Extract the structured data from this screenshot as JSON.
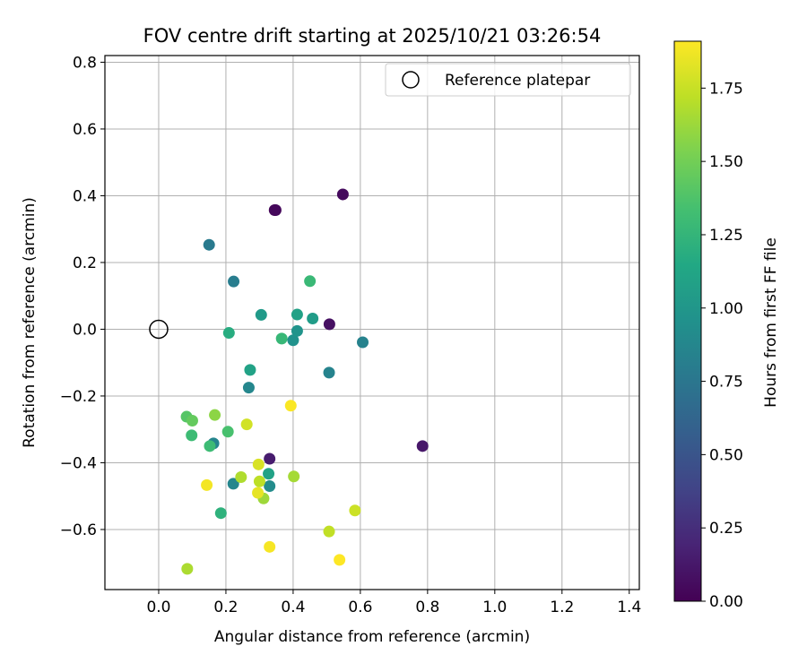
{
  "chart_data": {
    "type": "scatter",
    "title": "FOV centre drift starting at 2025/10/21 03:26:54",
    "xlabel": "Angular distance from reference (arcmin)",
    "ylabel": "Rotation from reference (arcmin)",
    "xlim": [
      -0.16,
      1.43
    ],
    "ylim": [
      -0.78,
      0.82
    ],
    "xticks": [
      0.0,
      0.2,
      0.4,
      0.6,
      0.8,
      1.0,
      1.2,
      1.4
    ],
    "xtick_labels": [
      "0.0",
      "0.2",
      "0.4",
      "0.6",
      "0.8",
      "1.0",
      "1.2",
      "1.4"
    ],
    "yticks": [
      -0.6,
      -0.4,
      -0.2,
      0.0,
      0.2,
      0.4,
      0.6,
      0.8
    ],
    "ytick_labels": [
      "−0.6",
      "−0.4",
      "−0.2",
      "0.0",
      "0.2",
      "0.4",
      "0.6",
      "0.8"
    ],
    "grid": true,
    "legend": {
      "position": "top-right",
      "entries": [
        "Reference platepar"
      ]
    },
    "reference_point": {
      "x": 0.0,
      "y": 0.0
    },
    "colorbar": {
      "label": "Hours from first FF file",
      "range": [
        0.0,
        1.91
      ],
      "ticks": [
        0.0,
        0.25,
        0.5,
        0.75,
        1.0,
        1.25,
        1.5,
        1.75
      ],
      "tick_labels": [
        "0.00",
        "0.25",
        "0.50",
        "0.75",
        "1.00",
        "1.25",
        "1.50",
        "1.75"
      ],
      "colormap": "viridis"
    },
    "points": [
      {
        "x": 0.345,
        "y": 0.357,
        "h": 0.02
      },
      {
        "x": 0.348,
        "y": 0.357,
        "h": 0.04
      },
      {
        "x": 0.548,
        "y": 0.404,
        "h": 0.05
      },
      {
        "x": 0.508,
        "y": 0.015,
        "h": 0.08
      },
      {
        "x": 0.785,
        "y": -0.35,
        "h": 0.12
      },
      {
        "x": 0.33,
        "y": -0.388,
        "h": 0.15
      },
      {
        "x": 0.15,
        "y": 0.253,
        "h": 0.78
      },
      {
        "x": 0.223,
        "y": 0.143,
        "h": 0.8
      },
      {
        "x": 0.607,
        "y": -0.039,
        "h": 0.84
      },
      {
        "x": 0.507,
        "y": -0.13,
        "h": 0.85
      },
      {
        "x": 0.268,
        "y": -0.175,
        "h": 0.88
      },
      {
        "x": 0.163,
        "y": -0.342,
        "h": 0.86
      },
      {
        "x": 0.222,
        "y": -0.463,
        "h": 0.87
      },
      {
        "x": 0.33,
        "y": -0.47,
        "h": 0.92
      },
      {
        "x": 0.4,
        "y": -0.033,
        "h": 0.96
      },
      {
        "x": 0.412,
        "y": -0.005,
        "h": 0.98
      },
      {
        "x": 0.305,
        "y": 0.043,
        "h": 1.03
      },
      {
        "x": 0.458,
        "y": 0.032,
        "h": 1.05
      },
      {
        "x": 0.412,
        "y": 0.044,
        "h": 1.09
      },
      {
        "x": 0.272,
        "y": -0.122,
        "h": 1.1
      },
      {
        "x": 0.327,
        "y": -0.433,
        "h": 1.1
      },
      {
        "x": 0.209,
        "y": -0.011,
        "h": 1.18
      },
      {
        "x": 0.366,
        "y": -0.028,
        "h": 1.27
      },
      {
        "x": 0.45,
        "y": 0.144,
        "h": 1.28
      },
      {
        "x": 0.185,
        "y": -0.551,
        "h": 1.22
      },
      {
        "x": 0.098,
        "y": -0.318,
        "h": 1.3
      },
      {
        "x": 0.152,
        "y": -0.35,
        "h": 1.3
      },
      {
        "x": 0.206,
        "y": -0.307,
        "h": 1.35
      },
      {
        "x": 0.083,
        "y": -0.262,
        "h": 1.4
      },
      {
        "x": 0.1,
        "y": -0.274,
        "h": 1.45
      },
      {
        "x": 0.167,
        "y": -0.257,
        "h": 1.58
      },
      {
        "x": 0.312,
        "y": -0.507,
        "h": 1.63
      },
      {
        "x": 0.402,
        "y": -0.441,
        "h": 1.65
      },
      {
        "x": 0.245,
        "y": -0.443,
        "h": 1.68
      },
      {
        "x": 0.3,
        "y": -0.456,
        "h": 1.72
      },
      {
        "x": 0.085,
        "y": -0.718,
        "h": 1.67
      },
      {
        "x": 0.507,
        "y": -0.606,
        "h": 1.73
      },
      {
        "x": 0.584,
        "y": -0.543,
        "h": 1.76
      },
      {
        "x": 0.262,
        "y": -0.285,
        "h": 1.78
      },
      {
        "x": 0.297,
        "y": -0.405,
        "h": 1.8
      },
      {
        "x": 0.295,
        "y": -0.49,
        "h": 1.84
      },
      {
        "x": 0.143,
        "y": -0.467,
        "h": 1.88
      },
      {
        "x": 0.393,
        "y": -0.229,
        "h": 1.9
      },
      {
        "x": 0.33,
        "y": -0.652,
        "h": 1.89
      },
      {
        "x": 0.538,
        "y": -0.691,
        "h": 1.91
      }
    ]
  }
}
